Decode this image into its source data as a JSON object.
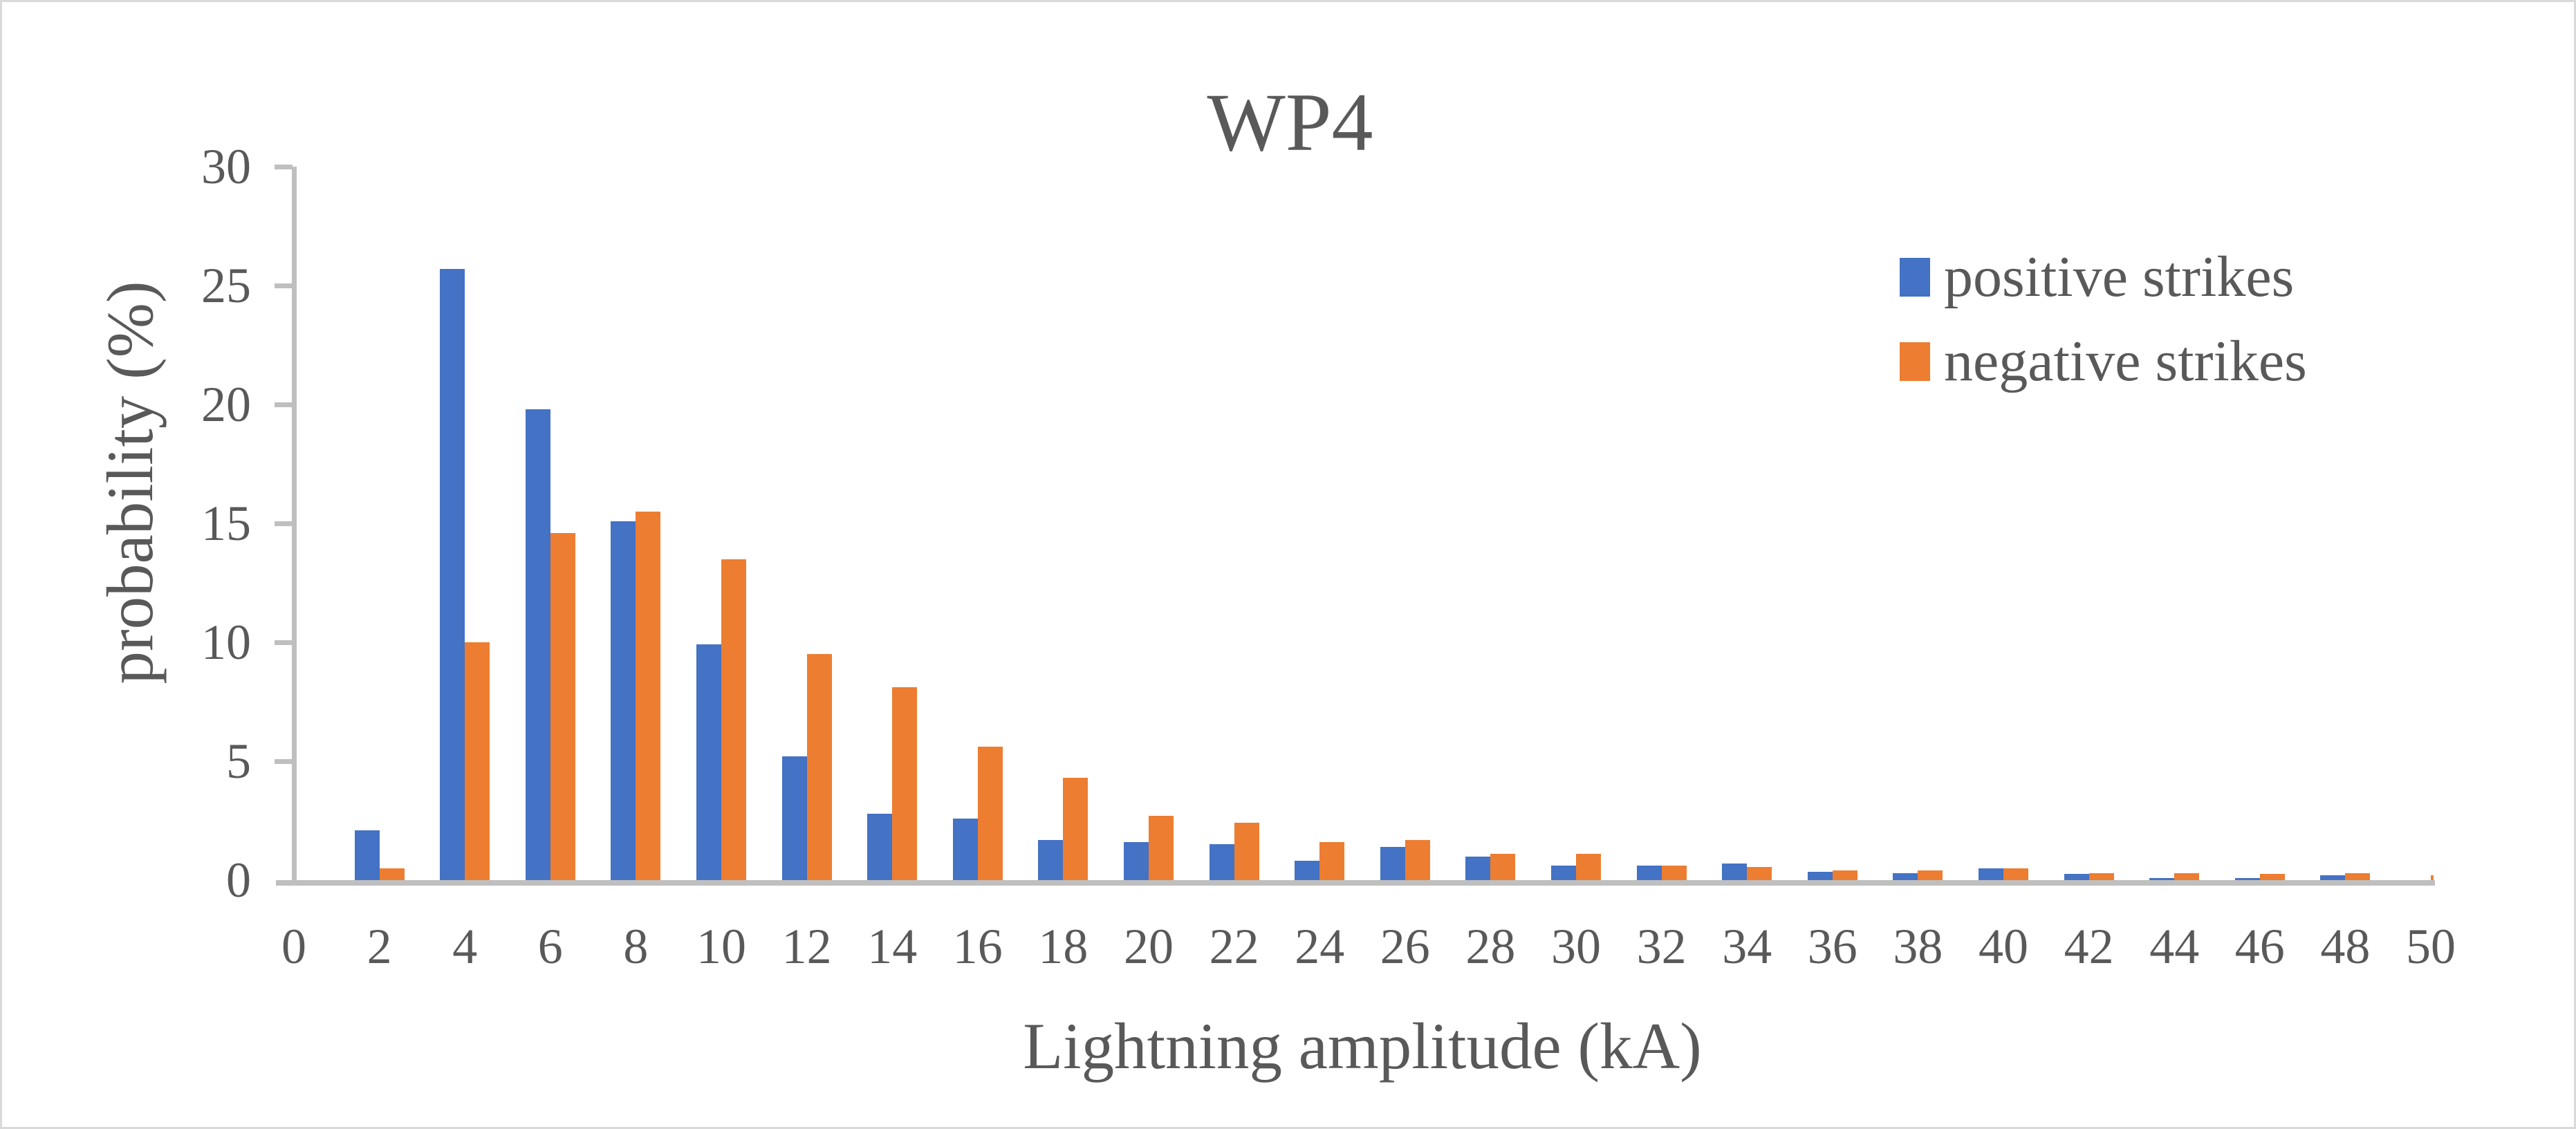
{
  "figure": {
    "title": "WP4",
    "background_color": "#FFFFFF",
    "border_color": "#D9D9D9"
  },
  "colors": {
    "positive_series": "#4472C4",
    "negative_series": "#ED7D31",
    "axis_line": "#BFBFBF",
    "text": "#595959"
  },
  "legend": {
    "position": "right",
    "items": [
      {
        "label": "positive strikes",
        "color": "#4472C4"
      },
      {
        "label": "negative strikes",
        "color": "#ED7D31"
      }
    ]
  },
  "chart_data": {
    "type": "bar",
    "title": "WP4",
    "xlabel": "Lightning amplitude (kA)",
    "ylabel": "probability (%)",
    "ylim": [
      0,
      30
    ],
    "yticks": [
      0,
      5,
      10,
      15,
      20,
      25,
      30
    ],
    "grid": "off",
    "legend_position": "right",
    "categories": [
      "0",
      "2",
      "4",
      "6",
      "8",
      "10",
      "12",
      "14",
      "16",
      "18",
      "20",
      "22",
      "24",
      "26",
      "28",
      "30",
      "32",
      "34",
      "36",
      "38",
      "40",
      "42",
      "44",
      "46",
      "48",
      "50"
    ],
    "series": [
      {
        "name": "positive strikes",
        "color": "#4472C4",
        "values": [
          0,
          2.1,
          25.7,
          19.8,
          15.1,
          9.9,
          5.2,
          2.8,
          2.6,
          1.7,
          1.6,
          1.5,
          0.8,
          1.4,
          1.0,
          0.6,
          0.6,
          0.7,
          0.35,
          0.3,
          0.5,
          0.25,
          0.1,
          0.1,
          0.2,
          0
        ]
      },
      {
        "name": "negative strikes",
        "color": "#ED7D31",
        "values": [
          0,
          0.5,
          10.0,
          14.6,
          15.5,
          13.5,
          9.5,
          8.1,
          5.6,
          4.3,
          2.7,
          2.4,
          1.6,
          1.7,
          1.1,
          1.1,
          0.6,
          0.55,
          0.4,
          0.4,
          0.5,
          0.3,
          0.3,
          0.25,
          0.3,
          0.2
        ]
      }
    ]
  }
}
